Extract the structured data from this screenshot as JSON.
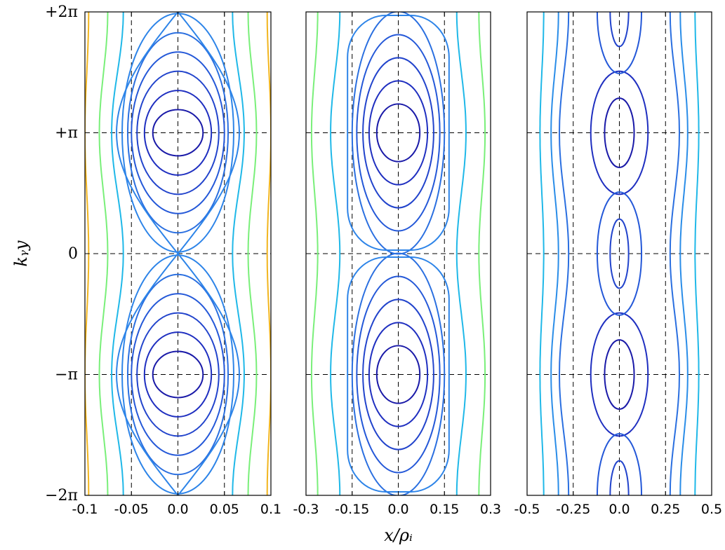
{
  "chart_data": [
    {
      "type": "contour",
      "panel": "left",
      "xlabel": "",
      "ylabel": "k_y y",
      "xlim": [
        -0.1,
        0.1
      ],
      "ylim": [
        -6.2832,
        6.2832
      ],
      "x_ticks": [
        -0.1,
        -0.05,
        0.0,
        0.05,
        0.1
      ],
      "x_tick_labels": [
        "-0.1",
        "-0.05",
        "0.0",
        "0.05",
        "0.1"
      ],
      "y_ticks": [
        -6.2832,
        -3.1416,
        0,
        3.1416,
        6.2832
      ],
      "y_tick_labels": [
        "−2π",
        "−π",
        "0",
        "+π",
        "+2π"
      ],
      "reference_lines_x": [
        -0.05,
        0.0,
        0.05
      ],
      "reference_lines_y": [
        -3.1416,
        0,
        3.1416
      ],
      "grid": false,
      "islands": "separatrix_x_point",
      "closed_half_widths": [
        0.027,
        0.036,
        0.044,
        0.05,
        0.054,
        0.06
      ],
      "open_contours": [
        {
          "x_at_center": 0.065,
          "bulge": 0.0125,
          "color": "#1fb8e8"
        },
        {
          "x_at_center": 0.08,
          "bulge": 0.009,
          "color": "#79ef79"
        },
        {
          "x_at_center": 0.098,
          "bulge": 0.004,
          "color": "#f2b51e"
        }
      ]
    },
    {
      "type": "contour",
      "panel": "middle",
      "xlabel": "x/ρ_i",
      "ylabel": "",
      "xlim": [
        -0.3,
        0.3
      ],
      "ylim": [
        -6.2832,
        6.2832
      ],
      "x_ticks": [
        -0.3,
        -0.15,
        0.0,
        0.15,
        0.3
      ],
      "x_tick_labels": [
        "-0.3",
        "-0.15",
        "0.0",
        "0.15",
        "0.3"
      ],
      "reference_lines_x": [
        -0.15,
        0.0,
        0.15
      ],
      "reference_lines_y": [
        -3.1416,
        0,
        3.1416
      ],
      "grid": false,
      "islands": "closed_cells",
      "closed_half_widths": [
        0.07,
        0.095,
        0.115,
        0.135,
        0.15
      ],
      "open_contours": [
        {
          "x_at_center": 0.205,
          "bulge": 0.03,
          "color": "#1fb8e8"
        },
        {
          "x_at_center": 0.272,
          "bulge": 0.02,
          "color": "#79ef79"
        }
      ]
    },
    {
      "type": "contour",
      "panel": "right",
      "xlabel": "",
      "ylabel": "",
      "xlim": [
        -0.5,
        0.5
      ],
      "ylim": [
        -6.2832,
        6.2832
      ],
      "x_ticks": [
        -0.5,
        -0.25,
        0.0,
        0.25,
        0.5
      ],
      "x_tick_labels": [
        "-0.5",
        "-0.25",
        "0.0",
        "0.25",
        "0.5"
      ],
      "reference_lines_x": [
        -0.25,
        0.0,
        0.25
      ],
      "reference_lines_y": [
        -3.1416,
        0,
        3.1416
      ],
      "grid": false,
      "islands": "secondary_islands",
      "closed_half_widths": [
        0.08,
        0.155
      ],
      "open_contours": [
        {
          "x_at_center": 0.3,
          "bulge": 0.05,
          "color": "#2a6fe0"
        },
        {
          "x_at_center": 0.35,
          "bulge": 0.04,
          "color": "#2a8de8"
        },
        {
          "x_at_center": 0.42,
          "bulge": 0.02,
          "color": "#1fb8e8"
        }
      ]
    }
  ]
}
